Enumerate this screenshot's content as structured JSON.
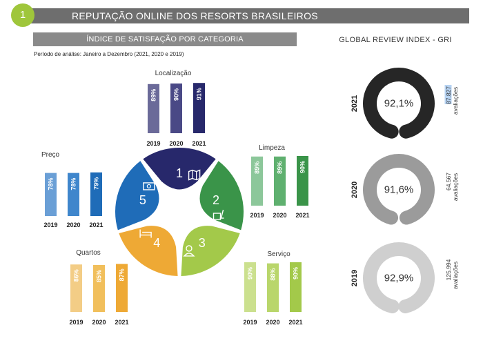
{
  "header": {
    "number": "1",
    "title": "REPUTAÇÃO ONLINE DOS RESORTS BRASILEIROS"
  },
  "subheader": {
    "title": "ÍNDICE DE SATISFAÇÃO POR CATEGORIA",
    "period": "Período de análise: Janeiro a Dezembro (2021, 2020 e 2019)"
  },
  "gri": {
    "title": "GLOBAL REVIEW INDEX - GRI"
  },
  "colors": {
    "header_gray": "#6e6e6e",
    "accent_green": "#9fc63b",
    "localizacao": [
      "#6b6a99",
      "#4a4986",
      "#27286b"
    ],
    "limpeza": [
      "#8cc79a",
      "#5fb06f",
      "#3a9449"
    ],
    "servico": [
      "#cbe08e",
      "#b9d66b",
      "#a3c94a"
    ],
    "quartos": [
      "#f3cd86",
      "#f1bf5c",
      "#eea935"
    ],
    "preco": [
      "#6a9fd6",
      "#3f86cc",
      "#1f6cb8"
    ]
  },
  "chart_data": [
    {
      "type": "bar",
      "title": "Localização",
      "categories": [
        "2019",
        "2020",
        "2021"
      ],
      "values": [
        89,
        90,
        91
      ],
      "labels": [
        "89%",
        "90%",
        "91%"
      ],
      "ylim": [
        0,
        100
      ]
    },
    {
      "type": "bar",
      "title": "Limpeza",
      "categories": [
        "2019",
        "2020",
        "2021"
      ],
      "values": [
        89,
        89,
        90
      ],
      "labels": [
        "89%",
        "89%",
        "90%"
      ],
      "ylim": [
        0,
        100
      ]
    },
    {
      "type": "bar",
      "title": "Serviço",
      "categories": [
        "2019",
        "2020",
        "2021"
      ],
      "values": [
        90,
        88,
        90
      ],
      "labels": [
        "90%",
        "88%",
        "90%"
      ],
      "ylim": [
        0,
        100
      ]
    },
    {
      "type": "bar",
      "title": "Quartos",
      "categories": [
        "2019",
        "2020",
        "2021"
      ],
      "values": [
        86,
        85,
        87
      ],
      "labels": [
        "86%",
        "85%",
        "87%"
      ],
      "ylim": [
        0,
        100
      ]
    },
    {
      "type": "bar",
      "title": "Preço",
      "categories": [
        "2019",
        "2020",
        "2021"
      ],
      "values": [
        78,
        78,
        79
      ],
      "labels": [
        "78%",
        "78%",
        "79%"
      ],
      "ylim": [
        0,
        100
      ]
    },
    {
      "type": "pie",
      "title": "",
      "categories": [
        "1",
        "2",
        "3",
        "4",
        "5"
      ],
      "values": [
        1,
        1,
        1,
        1,
        1
      ],
      "colors": [
        "#27286b",
        "#3a9449",
        "#a3c94a",
        "#eea935",
        "#1f6cb8"
      ],
      "icons": [
        "map-icon",
        "cleaning-icon",
        "service-icon",
        "bed-icon",
        "money-icon"
      ]
    },
    {
      "type": "gauge",
      "title": "GLOBAL REVIEW INDEX - GRI",
      "items": [
        {
          "year": "2021",
          "value": 92.1,
          "label": "92,1%",
          "count": "87.827",
          "count_label": "avaliações",
          "color": "#262626",
          "highlight_count": true
        },
        {
          "year": "2020",
          "value": 91.6,
          "label": "91,6%",
          "count": "64.567",
          "count_label": "avaliações",
          "color": "#9b9b9b",
          "highlight_count": false
        },
        {
          "year": "2019",
          "value": 92.9,
          "label": "92,9%",
          "count": "125.994",
          "count_label": "avaliações",
          "color": "#cfcfcf",
          "highlight_count": false
        }
      ],
      "max": 100
    }
  ]
}
